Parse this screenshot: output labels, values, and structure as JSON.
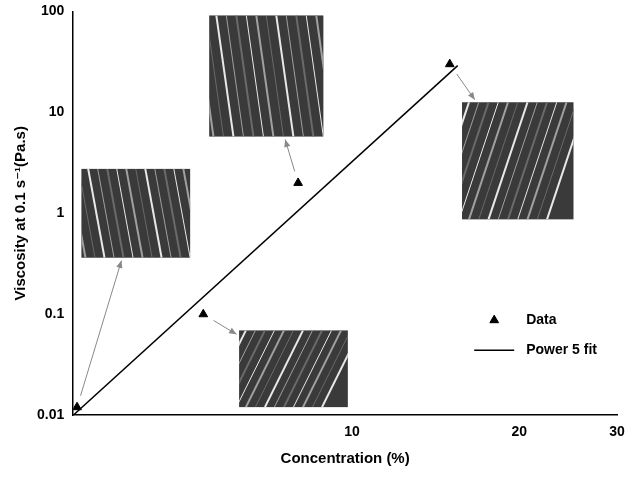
{
  "chart_data": {
    "type": "scatter",
    "x_label": "Concentration (%)",
    "y_label": "Viscosity at 0.1 s⁻¹(Pa.s)",
    "series": [
      {
        "name": "Data",
        "type": "scatter",
        "marker": "triangle",
        "color": "#000000",
        "x": [
          3.2,
          5.4,
          8,
          15
        ],
        "values": [
          0.012,
          0.1,
          2,
          30
        ]
      },
      {
        "name": "Power 5 fit",
        "type": "line",
        "line_style": "solid",
        "color": "#000000",
        "x": [
          3.15,
          15.5
        ],
        "values": [
          0.01,
          29
        ]
      }
    ],
    "xlim": [
      3.15,
      30
    ],
    "xticks": [
      10,
      20,
      30
    ],
    "ylim": [
      0.01,
      100
    ],
    "yticks": [
      0.01,
      0.1,
      1,
      10,
      100
    ],
    "log": true,
    "grid": false,
    "legend": "lower right"
  }
}
